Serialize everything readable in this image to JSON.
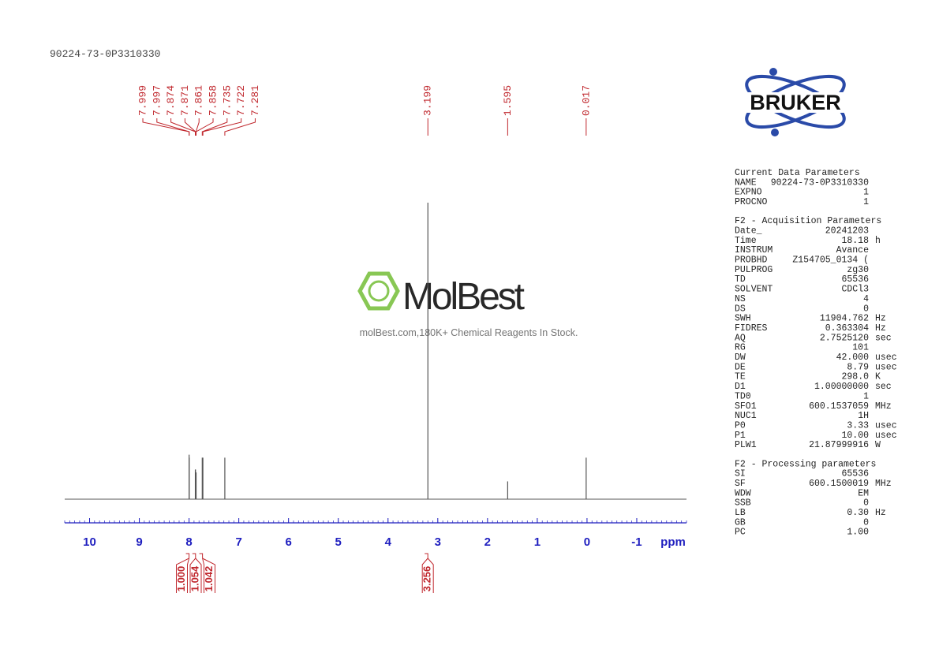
{
  "header": {
    "title": "90224-73-0P3310330"
  },
  "logo": {
    "text": "BRUKER"
  },
  "watermark": {
    "brand": "MolBest",
    "tagline": "molBest.com,180K+ Chemical Reagents In Stock."
  },
  "chart_data": {
    "type": "spectrum",
    "x_label": "ppm",
    "xlim": [
      10.5,
      -2.0
    ],
    "xticks": [
      10,
      9,
      8,
      7,
      6,
      5,
      4,
      3,
      2,
      1,
      0,
      -1
    ],
    "ylim": [
      0,
      100
    ],
    "peaks": {
      "ppm": [
        7.999,
        7.997,
        7.874,
        7.871,
        7.861,
        7.858,
        7.735,
        7.722,
        7.281,
        3.199,
        1.595,
        0.017
      ],
      "intensity": [
        15,
        14,
        10,
        10,
        9,
        9,
        14,
        14,
        14,
        100,
        6,
        14
      ]
    },
    "integrals": {
      "ppm": [
        8.0,
        7.87,
        7.73,
        3.2
      ],
      "values": [
        {
          "value": 1.0,
          "label": "1.000"
        },
        {
          "value": 1.054,
          "label": "1.054"
        },
        {
          "value": 1.042,
          "label": "1.042"
        },
        {
          "value": 3.256,
          "label": "3.256"
        }
      ]
    },
    "color": "#555555",
    "label_color": "#c0272d",
    "axis_color": "#1f1fbf"
  },
  "parameters": [
    {
      "title": "Current Data Parameters",
      "rows": [
        [
          "NAME",
          "90224-73-0P3310330"
        ],
        [
          "EXPNO",
          "1"
        ],
        [
          "PROCNO",
          "1"
        ]
      ]
    },
    {
      "title": "F2 - Acquisition Parameters",
      "rows": [
        [
          "Date_",
          "20241203"
        ],
        [
          "Time",
          "18.18",
          "h"
        ],
        [
          "INSTRUM",
          "Avance"
        ],
        [
          "PROBHD",
          "Z154705_0134 ("
        ],
        [
          "PULPROG",
          "zg30"
        ],
        [
          "TD",
          "65536"
        ],
        [
          "SOLVENT",
          "CDCl3"
        ],
        [
          "NS",
          "4"
        ],
        [
          "DS",
          "0"
        ],
        [
          "SWH",
          "11904.762",
          "Hz"
        ],
        [
          "FIDRES",
          "0.363304",
          "Hz"
        ],
        [
          "AQ",
          "2.7525120",
          "sec"
        ],
        [
          "RG",
          "101"
        ],
        [
          "DW",
          "42.000",
          "usec"
        ],
        [
          "DE",
          "8.79",
          "usec"
        ],
        [
          "TE",
          "298.0",
          "K"
        ],
        [
          "D1",
          "1.00000000",
          "sec"
        ],
        [
          "TD0",
          "1"
        ],
        [
          "SFO1",
          "600.1537059",
          "MHz"
        ],
        [
          "NUC1",
          "1H"
        ],
        [
          "P0",
          "3.33",
          "usec"
        ],
        [
          "P1",
          "10.00",
          "usec"
        ],
        [
          "PLW1",
          "21.87999916",
          "W"
        ]
      ]
    },
    {
      "title": "F2 - Processing parameters",
      "rows": [
        [
          "SI",
          "65536"
        ],
        [
          "SF",
          "600.1500019",
          "MHz"
        ],
        [
          "WDW",
          "EM"
        ],
        [
          "SSB",
          "0"
        ],
        [
          "LB",
          "0.30",
          "Hz"
        ],
        [
          "GB",
          "0"
        ],
        [
          "PC",
          "1.00"
        ]
      ]
    }
  ]
}
